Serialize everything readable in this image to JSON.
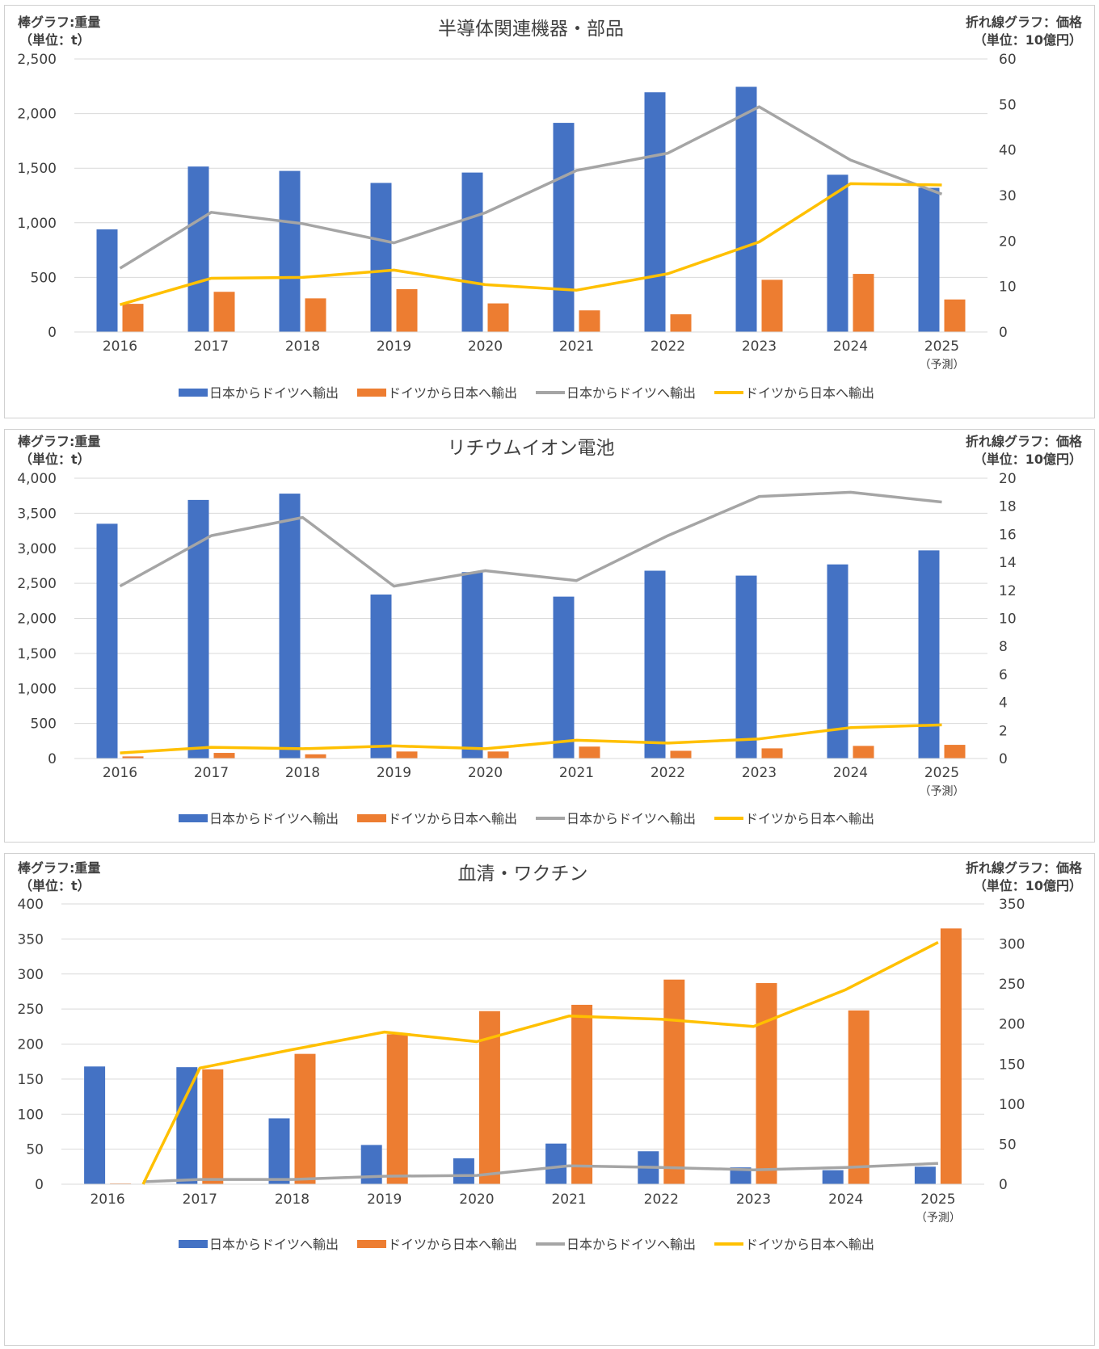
{
  "colors": {
    "jp_to_de_bar": "#4472C4",
    "de_to_jp_bar": "#ED7D31",
    "jp_to_de_line": "#A5A5A5",
    "de_to_jp_line": "#FFC000",
    "grid": "#D9D9D9",
    "text": "#404040"
  },
  "chart_data": [
    {
      "type": "bar",
      "title": "半導体関連機器・部品",
      "left_axis_label": [
        "棒グラフ:重量",
        "（単位：t）"
      ],
      "right_axis_label": [
        "折れ線グラフ：価格",
        "（単位：10億円）"
      ],
      "categories": [
        "2016",
        "2017",
        "2018",
        "2019",
        "2020",
        "2021",
        "2022",
        "2023",
        "2024",
        "2025"
      ],
      "category_sublabels": [
        "",
        "",
        "",
        "",
        "",
        "",
        "",
        "",
        "",
        "（予測）"
      ],
      "ylim": [
        0,
        2500
      ],
      "yticks": [
        "0",
        "500",
        "1,000",
        "1,500",
        "2,000",
        "2,500"
      ],
      "y2lim": [
        0,
        60
      ],
      "y2ticks": [
        "0",
        "10",
        "20",
        "30",
        "40",
        "50",
        "60"
      ],
      "series": [
        {
          "name": "日本からドイツへ輸出",
          "kind": "bar",
          "axis": "left",
          "values": [
            940,
            1515,
            1475,
            1365,
            1460,
            1915,
            2195,
            2245,
            1440,
            1320
          ]
        },
        {
          "name": "ドイツから日本へ輸出",
          "kind": "bar",
          "axis": "left",
          "values": [
            258,
            368,
            308,
            392,
            262,
            198,
            162,
            478,
            532,
            298
          ]
        },
        {
          "name": "日本からドイツへ輸出",
          "kind": "line",
          "axis": "right",
          "values": [
            14,
            26.3,
            23.8,
            19.6,
            26.2,
            35.5,
            39.3,
            49.5,
            37.8,
            30.3
          ]
        },
        {
          "name": "ドイツから日本へ輸出",
          "kind": "line",
          "axis": "right",
          "values": [
            6,
            11.8,
            12,
            13.6,
            10.4,
            9.2,
            12.8,
            19.8,
            32.6,
            32.3
          ]
        }
      ]
    },
    {
      "type": "bar",
      "title": "リチウムイオン電池",
      "left_axis_label": [
        "棒グラフ:重量",
        "（単位：t）"
      ],
      "right_axis_label": [
        "折れ線グラフ：価格",
        "（単位：10億円）"
      ],
      "categories": [
        "2016",
        "2017",
        "2018",
        "2019",
        "2020",
        "2021",
        "2022",
        "2023",
        "2024",
        "2025"
      ],
      "category_sublabels": [
        "",
        "",
        "",
        "",
        "",
        "",
        "",
        "",
        "",
        "（予測）"
      ],
      "ylim": [
        0,
        4000
      ],
      "yticks": [
        "0",
        "500",
        "1,000",
        "1,500",
        "2,000",
        "2,500",
        "3,000",
        "3,500",
        "4,000"
      ],
      "y2lim": [
        0,
        20
      ],
      "y2ticks": [
        "0",
        "2",
        "4",
        "6",
        "8",
        "10",
        "12",
        "14",
        "16",
        "18",
        "20"
      ],
      "series": [
        {
          "name": "日本からドイツへ輸出",
          "kind": "bar",
          "axis": "left",
          "values": [
            3350,
            3690,
            3780,
            2340,
            2660,
            2310,
            2680,
            2610,
            2770,
            2970
          ]
        },
        {
          "name": "ドイツから日本へ輸出",
          "kind": "bar",
          "axis": "left",
          "values": [
            30,
            80,
            60,
            100,
            100,
            170,
            110,
            145,
            180,
            195
          ]
        },
        {
          "name": "日本からドイツへ輸出",
          "kind": "line",
          "axis": "right",
          "values": [
            12.3,
            15.9,
            17.2,
            12.3,
            13.4,
            12.7,
            15.9,
            18.7,
            19.0,
            18.3
          ]
        },
        {
          "name": "ドイツから日本へ輸出",
          "kind": "line",
          "axis": "right",
          "values": [
            0.4,
            0.8,
            0.7,
            0.9,
            0.7,
            1.3,
            1.1,
            1.4,
            2.2,
            2.4
          ]
        }
      ]
    },
    {
      "type": "bar",
      "title": "血清・ワクチン",
      "left_axis_label": [
        "棒グラフ:重量",
        "（単位：t）"
      ],
      "right_axis_label": [
        "折れ線グラフ：価格",
        "（単位：10億円）"
      ],
      "categories": [
        "2016",
        "2017",
        "2018",
        "2019",
        "2020",
        "2021",
        "2022",
        "2023",
        "2024",
        "2025"
      ],
      "category_sublabels": [
        "",
        "",
        "",
        "",
        "",
        "",
        "",
        "",
        "",
        "（予測）"
      ],
      "ylim": [
        0,
        400
      ],
      "yticks": [
        "0",
        "50",
        "100",
        "150",
        "200",
        "250",
        "300",
        "350",
        "400"
      ],
      "y2lim": [
        0,
        350
      ],
      "y2ticks": [
        "0",
        "50",
        "100",
        "150",
        "200",
        "250",
        "300",
        "350"
      ],
      "series": [
        {
          "name": "日本からドイツへ輸出",
          "kind": "bar",
          "axis": "left",
          "values": [
            168,
            167,
            94,
            56,
            37,
            58,
            47,
            24,
            20,
            25
          ]
        },
        {
          "name": "ドイツから日本へ輸出",
          "kind": "bar",
          "axis": "left",
          "values": [
            1,
            164,
            186,
            214,
            247,
            256,
            292,
            287,
            248,
            365
          ]
        },
        {
          "name": "日本からドイツへ輸出",
          "kind": "line",
          "axis": "right",
          "values": [
            3,
            6,
            6,
            10,
            11,
            23,
            21,
            18,
            21,
            26
          ]
        },
        {
          "name": "ドイツから日本へ輸出",
          "kind": "line",
          "axis": "right",
          "values": [
            0,
            145,
            168,
            190,
            178,
            210,
            206,
            197,
            243,
            302
          ]
        }
      ]
    }
  ]
}
